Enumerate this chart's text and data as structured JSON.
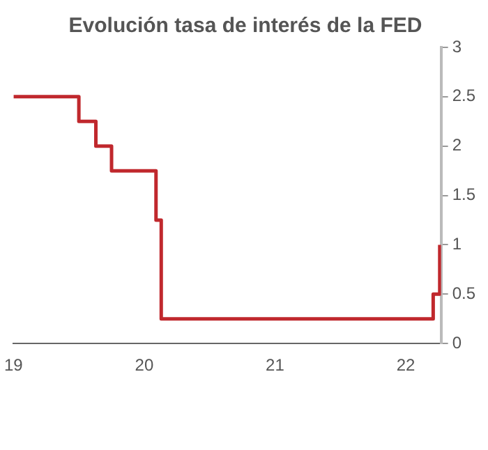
{
  "chart_data": {
    "type": "step",
    "title": "Evolución tasa de interés de la FED",
    "x": [
      19,
      19.5,
      19.63,
      19.75,
      20.09,
      20.13,
      22.21,
      22.26
    ],
    "series": [
      {
        "color": "#c0282d",
        "values": [
          2.5,
          2.25,
          2,
          1.75,
          1.25,
          0.25,
          0.5,
          1
        ]
      }
    ],
    "xlim": [
      19,
      22.27
    ],
    "xticks": [
      19,
      20,
      21,
      22
    ],
    "ylim": [
      0,
      3
    ],
    "yticks": [
      0,
      0.5,
      1,
      1.5,
      2,
      2.5,
      3
    ],
    "grid": false,
    "legend": false
  }
}
